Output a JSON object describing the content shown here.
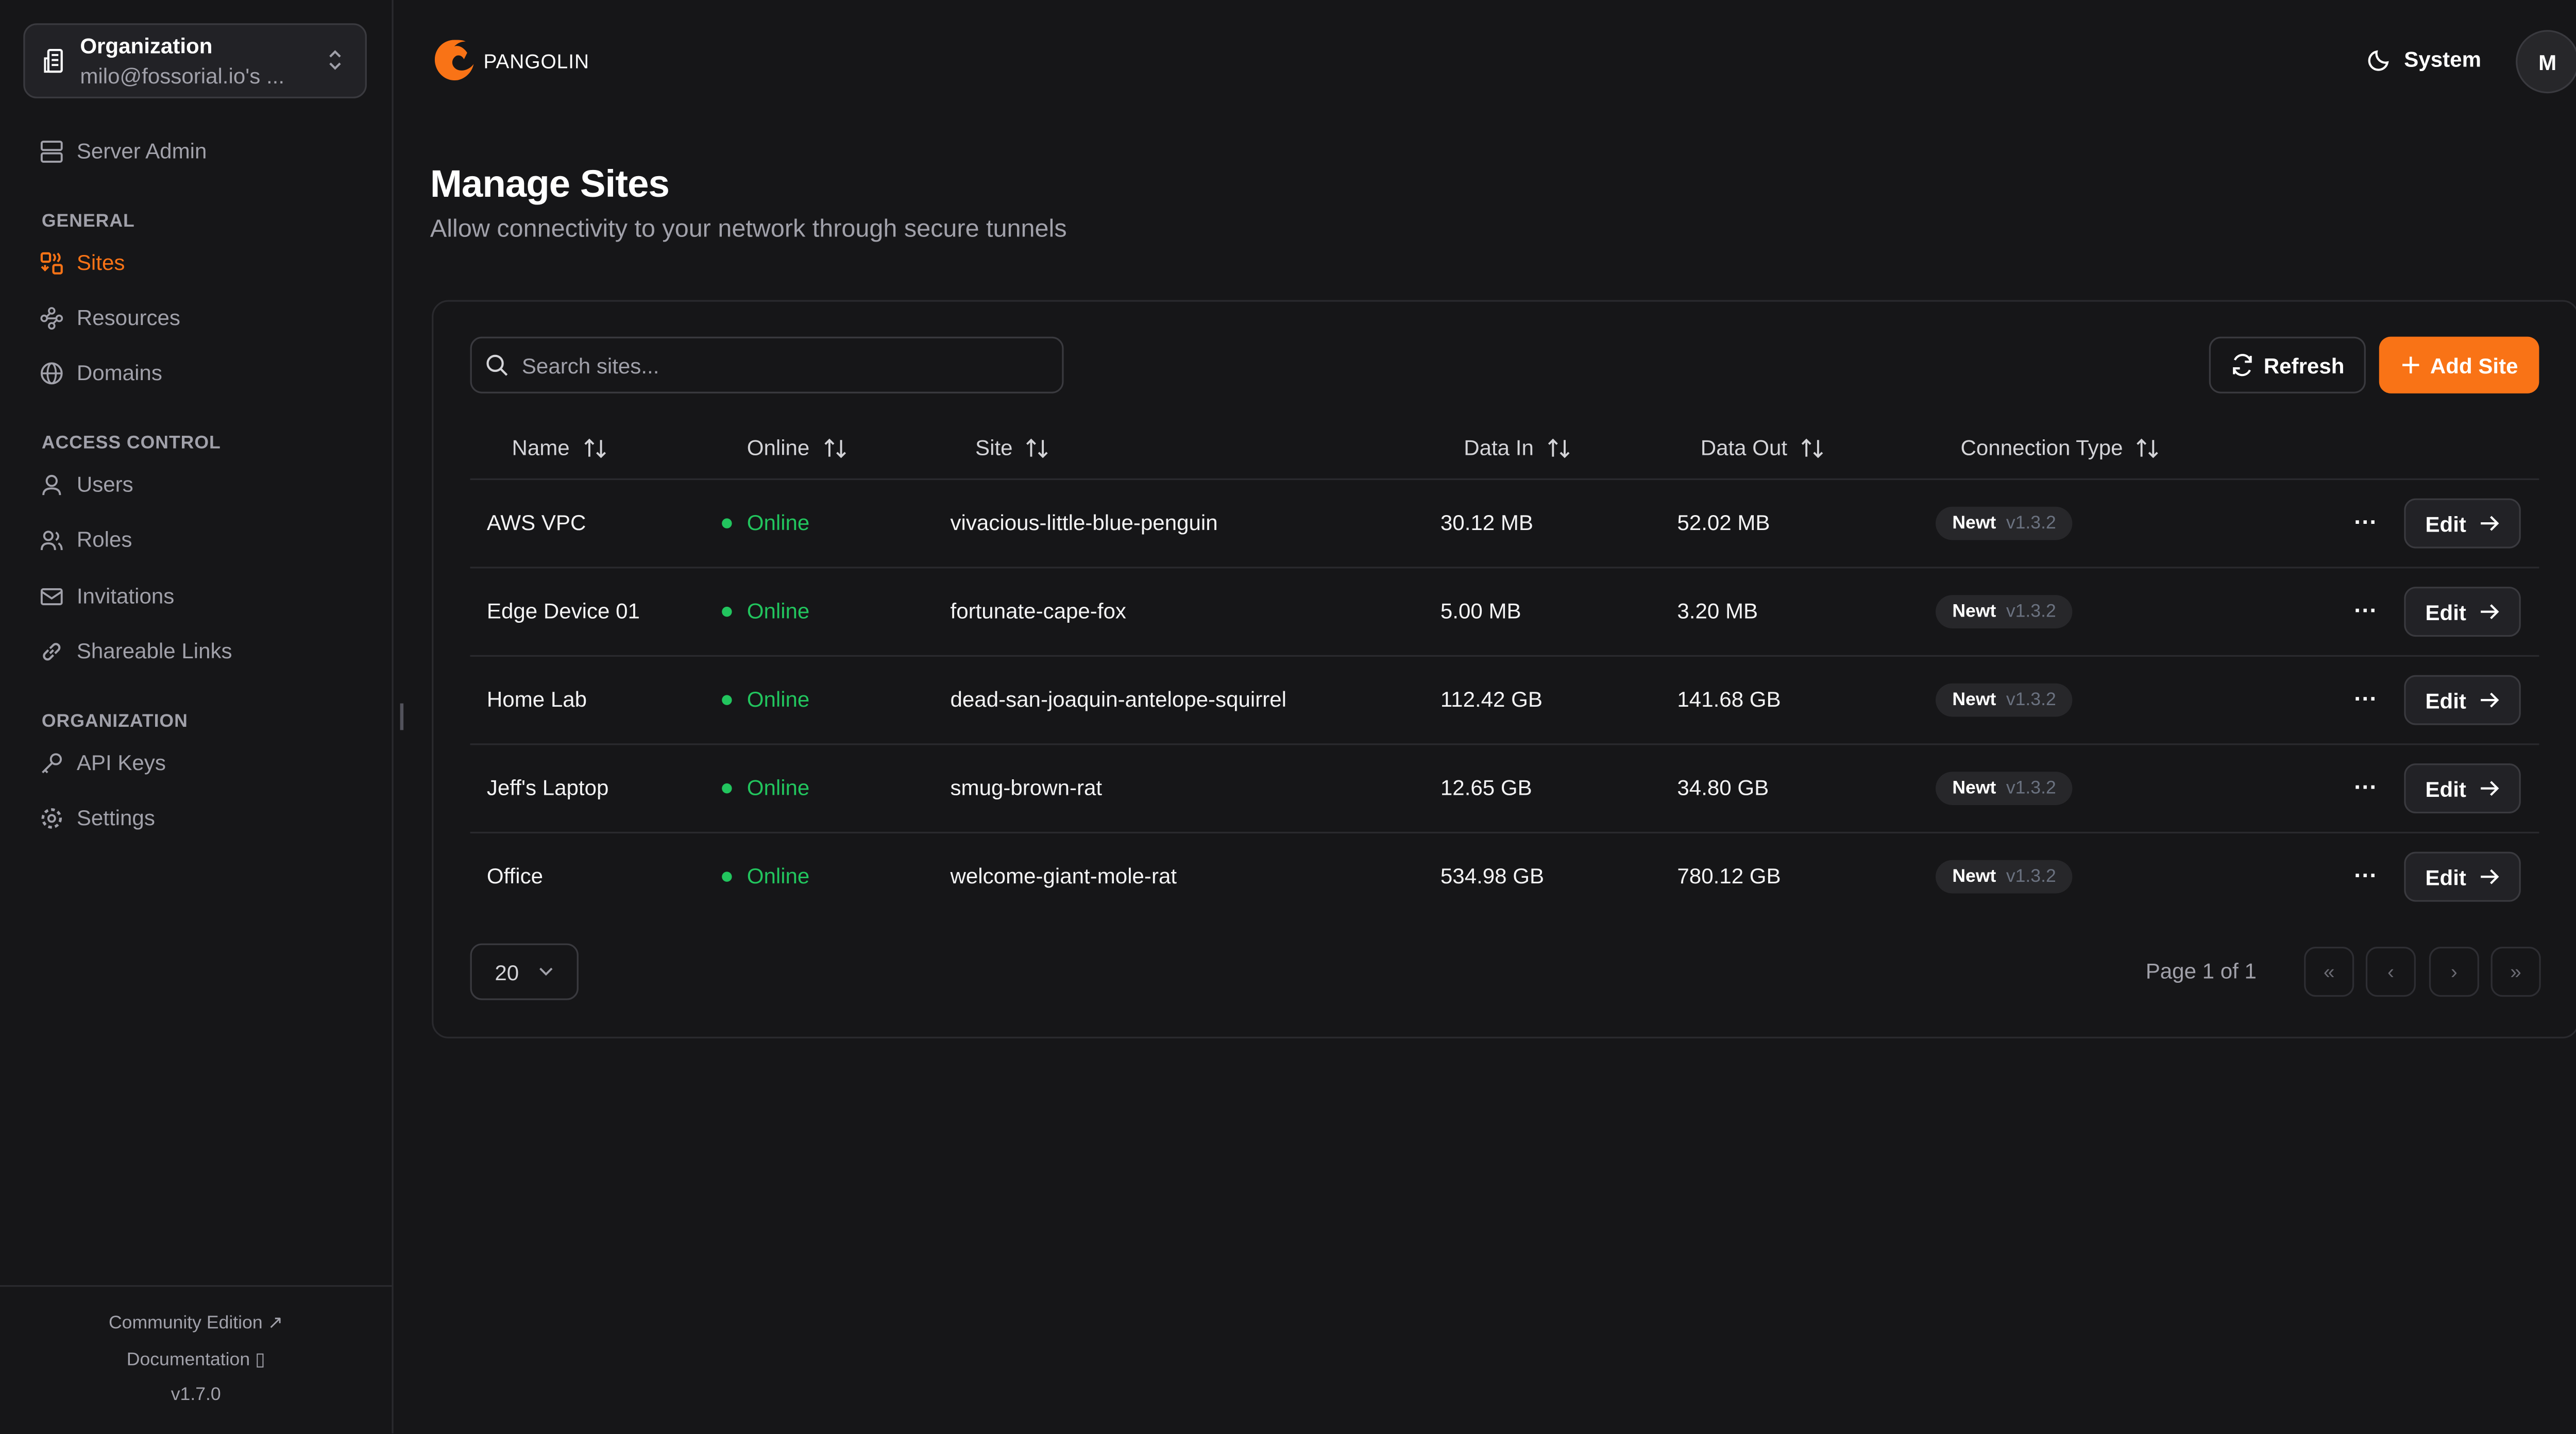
{
  "colors": {
    "accent": "#f97316",
    "online": "#22c55e",
    "background": "#161618"
  },
  "org": {
    "label": "Organization",
    "value": "milo@fossorial.io's ...",
    "icon": "building-icon"
  },
  "sidebar": {
    "server_admin": "Server Admin",
    "sections": [
      {
        "title": "GENERAL",
        "items": [
          {
            "label": "Sites",
            "icon": "sites-icon",
            "active": true
          },
          {
            "label": "Resources",
            "icon": "waypoints-icon"
          },
          {
            "label": "Domains",
            "icon": "globe-icon"
          }
        ]
      },
      {
        "title": "ACCESS CONTROL",
        "items": [
          {
            "label": "Users",
            "icon": "user-icon"
          },
          {
            "label": "Roles",
            "icon": "users-icon"
          },
          {
            "label": "Invitations",
            "icon": "mail-icon"
          },
          {
            "label": "Shareable Links",
            "icon": "link-icon"
          }
        ]
      },
      {
        "title": "ORGANIZATION",
        "items": [
          {
            "label": "API Keys",
            "icon": "key-icon"
          },
          {
            "label": "Settings",
            "icon": "gear-icon"
          }
        ]
      }
    ],
    "footer": {
      "community": "Community Edition",
      "docs": "Documentation",
      "version": "v1.7.0"
    }
  },
  "header": {
    "brand": "PANGOLIN",
    "theme": "System",
    "avatar": "M"
  },
  "page": {
    "title": "Manage Sites",
    "subtitle": "Allow connectivity to your network through secure tunnels"
  },
  "toolbar": {
    "search_placeholder": "Search sites...",
    "refresh": "Refresh",
    "add": "Add Site"
  },
  "table": {
    "columns": [
      "Name",
      "Online",
      "Site",
      "Data In",
      "Data Out",
      "Connection Type"
    ],
    "rows": [
      {
        "name": "AWS VPC",
        "online": "Online",
        "site": "vivacious-little-blue-penguin",
        "data_in": "30.12 MB",
        "data_out": "52.02 MB",
        "type": "Newt",
        "version": "v1.3.2"
      },
      {
        "name": "Edge Device 01",
        "online": "Online",
        "site": "fortunate-cape-fox",
        "data_in": "5.00 MB",
        "data_out": "3.20 MB",
        "type": "Newt",
        "version": "v1.3.2"
      },
      {
        "name": "Home Lab",
        "online": "Online",
        "site": "dead-san-joaquin-antelope-squirrel",
        "data_in": "112.42 GB",
        "data_out": "141.68 GB",
        "type": "Newt",
        "version": "v1.3.2"
      },
      {
        "name": "Jeff's Laptop",
        "online": "Online",
        "site": "smug-brown-rat",
        "data_in": "12.65 GB",
        "data_out": "34.80 GB",
        "type": "Newt",
        "version": "v1.3.2"
      },
      {
        "name": "Office",
        "online": "Online",
        "site": "welcome-giant-mole-rat",
        "data_in": "534.98 GB",
        "data_out": "780.12 GB",
        "type": "Newt",
        "version": "v1.3.2"
      }
    ],
    "edit_label": "Edit",
    "more_label": "···"
  },
  "pagination": {
    "page_size": "20",
    "page_text": "Page 1 of 1"
  }
}
